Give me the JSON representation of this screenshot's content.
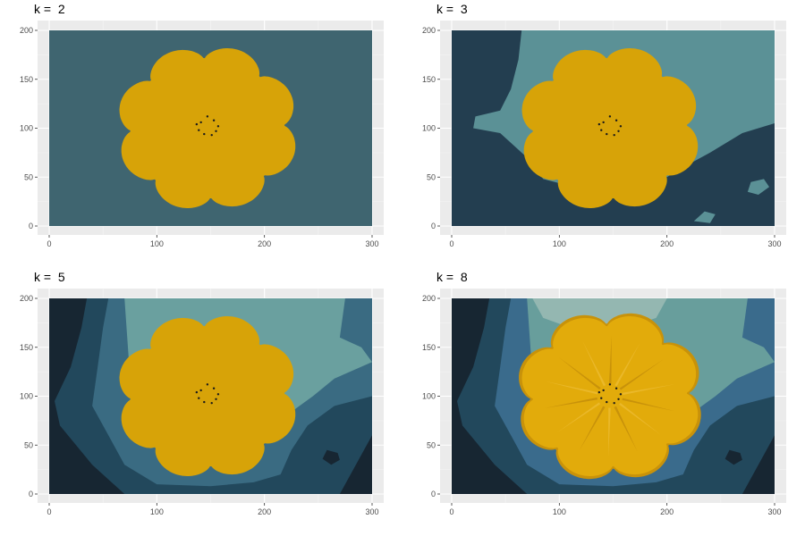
{
  "chart_data": [
    {
      "type": "heatmap",
      "title": "k =  2",
      "xlim": [
        0,
        300
      ],
      "ylim": [
        0,
        200
      ],
      "x_ticks": [
        0,
        100,
        200,
        300
      ],
      "y_ticks": [
        0,
        50,
        100,
        150,
        200
      ],
      "grid": true,
      "colors": {
        "background": "#3f6570",
        "flower": "#d7a308"
      },
      "flower": {
        "cx": 147,
        "cy": 100,
        "r": 85,
        "petals": 8
      }
    },
    {
      "type": "heatmap",
      "title": "k =  3",
      "xlim": [
        0,
        300
      ],
      "ylim": [
        0,
        200
      ],
      "x_ticks": [
        0,
        100,
        200,
        300
      ],
      "y_ticks": [
        0,
        50,
        100,
        150,
        200
      ],
      "grid": true,
      "colors": {
        "dark": "#233e50",
        "light": "#5b9196",
        "flower": "#d7a308"
      },
      "flower": {
        "cx": 147,
        "cy": 100,
        "r": 85,
        "petals": 8
      }
    },
    {
      "type": "heatmap",
      "title": "k =  5",
      "xlim": [
        0,
        300
      ],
      "ylim": [
        0,
        200
      ],
      "x_ticks": [
        0,
        100,
        200,
        300
      ],
      "y_ticks": [
        0,
        50,
        100,
        150,
        200
      ],
      "grid": true,
      "colors": {
        "darkest": "#172632",
        "dark": "#22485c",
        "mid": "#3a6b82",
        "light": "#6aa09f",
        "flower": "#d7a308"
      },
      "flower": {
        "cx": 147,
        "cy": 100,
        "r": 85,
        "petals": 8
      }
    },
    {
      "type": "heatmap",
      "title": "k =  8",
      "xlim": [
        0,
        300
      ],
      "ylim": [
        0,
        200
      ],
      "x_ticks": [
        0,
        100,
        200,
        300
      ],
      "y_ticks": [
        0,
        50,
        100,
        150,
        200
      ],
      "grid": true,
      "colors": {
        "darkest": "#172632",
        "dark": "#22485c",
        "mid": "#3a6b8c",
        "light": "#689e9c",
        "pale": "#94b7b1",
        "flower_dark": "#c8920a",
        "flower": "#e2ab0b",
        "flower_light": "#eab82a"
      },
      "flower": {
        "cx": 147,
        "cy": 100,
        "r": 85,
        "petals": 8
      }
    }
  ]
}
